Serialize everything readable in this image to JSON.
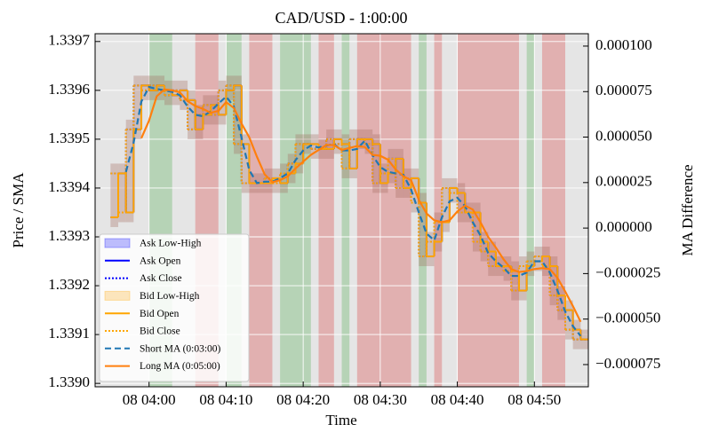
{
  "chart_data": {
    "type": "step",
    "title": "CAD/USD - 1:00:00",
    "x_label": "Time",
    "y_label": "Price / SMA",
    "y2_label": "MA Difference",
    "x": [
      "08 03:55",
      "08 03:56",
      "08 03:57",
      "08 03:58",
      "08 03:59",
      "08 04:00",
      "08 04:01",
      "08 04:02",
      "08 04:03",
      "08 04:04",
      "08 04:05",
      "08 04:06",
      "08 04:07",
      "08 04:08",
      "08 04:09",
      "08 04:10",
      "08 04:11",
      "08 04:12",
      "08 04:13",
      "08 04:14",
      "08 04:15",
      "08 04:16",
      "08 04:17",
      "08 04:18",
      "08 04:19",
      "08 04:20",
      "08 04:21",
      "08 04:22",
      "08 04:23",
      "08 04:24",
      "08 04:25",
      "08 04:26",
      "08 04:27",
      "08 04:28",
      "08 04:29",
      "08 04:30",
      "08 04:31",
      "08 04:32",
      "08 04:33",
      "08 04:34",
      "08 04:35",
      "08 04:36",
      "08 04:37",
      "08 04:38",
      "08 04:39",
      "08 04:40",
      "08 04:41",
      "08 04:42",
      "08 04:43",
      "08 04:44",
      "08 04:45",
      "08 04:46",
      "08 04:47",
      "08 04:48",
      "08 04:49",
      "08 04:50",
      "08 04:51",
      "08 04:52",
      "08 04:53",
      "08 04:54",
      "08 04:55",
      "08 04:56"
    ],
    "xlim": [
      "08 03:53",
      "08 04:57"
    ],
    "xticks": [
      "08 04:00",
      "08 04:10",
      "08 04:20",
      "08 04:30",
      "08 04:40",
      "08 04:50"
    ],
    "ylim": [
      1.338993,
      1.339716
    ],
    "yticks": [
      {
        "value": 1.339,
        "label": "1.3390"
      },
      1.3391,
      1.3392,
      1.3393,
      1.3394,
      1.3395,
      1.3396,
      1.3397
    ],
    "y2lim": [
      -8.72e-05,
      0.0001068
    ],
    "y2ticks": [
      {
        "value": -7.5e-05,
        "label": "−0.000075"
      },
      {
        "value": -5e-05,
        "label": "−0.000050"
      },
      {
        "value": -2.5e-05,
        "label": "−0.000025"
      },
      {
        "value": 0,
        "label": "0.000000"
      },
      {
        "value": 2.5e-05,
        "label": "0.000025"
      },
      {
        "value": 5e-05,
        "label": "0.000050"
      },
      {
        "value": 7.5e-05,
        "label": "0.000075"
      },
      {
        "value": 0.0001,
        "label": "0.000100"
      }
    ],
    "grid": true,
    "legend": "lower left",
    "regions": [
      {
        "start": "08 04:00",
        "end": "08 04:03",
        "color": "#2ca02c"
      },
      {
        "start": "08 04:06",
        "end": "08 04:09",
        "color": "#d62728"
      },
      {
        "start": "08 04:10",
        "end": "08 04:12",
        "color": "#2ca02c"
      },
      {
        "start": "08 04:13",
        "end": "08 04:16",
        "color": "#d62728"
      },
      {
        "start": "08 04:17",
        "end": "08 04:21",
        "color": "#2ca02c"
      },
      {
        "start": "08 04:22",
        "end": "08 04:24",
        "color": "#d62728"
      },
      {
        "start": "08 04:25",
        "end": "08 04:26",
        "color": "#2ca02c"
      },
      {
        "start": "08 04:27",
        "end": "08 04:34",
        "color": "#d62728"
      },
      {
        "start": "08 04:35",
        "end": "08 04:36",
        "color": "#2ca02c"
      },
      {
        "start": "08 04:37",
        "end": "08 04:38",
        "color": "#d62728"
      },
      {
        "start": "08 04:40",
        "end": "08 04:48",
        "color": "#d62728"
      },
      {
        "start": "08 04:49",
        "end": "08 04:50",
        "color": "#2ca02c"
      },
      {
        "start": "08 04:51",
        "end": "08 04:54",
        "color": "#d62728"
      }
    ],
    "series": [
      {
        "name": "Ask Low-High",
        "kind": "range",
        "color": "#0000ff",
        "low": [
          1.33932,
          1.33933,
          1.33933,
          1.3395,
          1.33958,
          1.33958,
          1.33958,
          1.33957,
          1.33957,
          1.33956,
          1.3395,
          1.3395,
          1.33953,
          1.33953,
          1.33953,
          1.33958,
          1.33947,
          1.33939,
          1.33939,
          1.33939,
          1.33939,
          1.33939,
          1.33939,
          1.33941,
          1.33943,
          1.33947,
          1.33946,
          1.33946,
          1.33946,
          1.33947,
          1.33942,
          1.33942,
          1.33948,
          1.33947,
          1.33939,
          1.33939,
          1.33941,
          1.33938,
          1.33938,
          1.33935,
          1.33924,
          1.33924,
          1.33927,
          1.33931,
          1.33937,
          1.33933,
          1.33933,
          1.33927,
          1.33925,
          1.33922,
          1.33922,
          1.33921,
          1.33917,
          1.33917,
          1.33922,
          1.33923,
          1.33922,
          1.33916,
          1.33913,
          1.33909,
          1.33907,
          1.33907
        ],
        "high": [
          1.33945,
          1.33945,
          1.33954,
          1.33963,
          1.33963,
          1.33963,
          1.33963,
          1.33962,
          1.33962,
          1.33962,
          1.3396,
          1.33957,
          1.33959,
          1.33959,
          1.33962,
          1.33963,
          1.33963,
          1.33951,
          1.33943,
          1.33943,
          1.33944,
          1.33944,
          1.33945,
          1.33947,
          1.33951,
          1.33951,
          1.33951,
          1.3395,
          1.33952,
          1.33952,
          1.33951,
          1.33952,
          1.33952,
          1.33952,
          1.33951,
          1.33945,
          1.33948,
          1.33948,
          1.33944,
          1.33944,
          1.33939,
          1.33931,
          1.33935,
          1.33942,
          1.33942,
          1.33941,
          1.33937,
          1.33937,
          1.33931,
          1.33929,
          1.33926,
          1.33926,
          1.33925,
          1.33926,
          1.33927,
          1.33928,
          1.33928,
          1.33926,
          1.3392,
          1.33917,
          1.33913,
          1.33911
        ]
      },
      {
        "name": "Ask Open",
        "kind": "step",
        "style": "solid",
        "color": "#0000ff",
        "values": [
          1.33934,
          1.33943,
          1.33935,
          1.33952,
          1.33961,
          1.3396,
          1.33961,
          1.3396,
          1.33959,
          1.3396,
          1.33958,
          1.33952,
          1.33955,
          1.33957,
          1.33955,
          1.3396,
          1.33961,
          1.33949,
          1.33941,
          1.33941,
          1.33941,
          1.33942,
          1.33941,
          1.33943,
          1.33945,
          1.33949,
          1.33949,
          1.33948,
          1.33948,
          1.3395,
          1.33949,
          1.33944,
          1.3395,
          1.3395,
          1.33949,
          1.33941,
          1.33943,
          1.33946,
          1.3394,
          1.33942,
          1.33937,
          1.33926,
          1.33929,
          1.33933,
          1.3394,
          1.33939,
          1.33935,
          1.33935,
          1.33929,
          1.33927,
          1.33924,
          1.33924,
          1.33923,
          1.33919,
          1.33924,
          1.33925,
          1.33926,
          1.33924,
          1.33918,
          1.33915,
          1.33911,
          1.33909
        ]
      },
      {
        "name": "Ask Close",
        "kind": "step",
        "style": "dotted",
        "color": "#0000ff",
        "values": [
          1.33943,
          1.33935,
          1.33952,
          1.33961,
          1.3396,
          1.33961,
          1.3396,
          1.33959,
          1.3396,
          1.33958,
          1.33952,
          1.33955,
          1.33957,
          1.33955,
          1.3396,
          1.33961,
          1.33949,
          1.33941,
          1.33941,
          1.33941,
          1.33942,
          1.33941,
          1.33943,
          1.33945,
          1.33949,
          1.33949,
          1.33948,
          1.33948,
          1.3395,
          1.33949,
          1.33944,
          1.3395,
          1.3395,
          1.33949,
          1.33941,
          1.33943,
          1.33946,
          1.3394,
          1.33942,
          1.33937,
          1.33926,
          1.33929,
          1.33933,
          1.3394,
          1.33939,
          1.33935,
          1.33935,
          1.33929,
          1.33927,
          1.33924,
          1.33924,
          1.33923,
          1.33919,
          1.33924,
          1.33925,
          1.33926,
          1.33924,
          1.33918,
          1.33915,
          1.33911,
          1.33909,
          1.33909
        ]
      },
      {
        "name": "Bid Low-High",
        "kind": "range",
        "color": "#ffa500",
        "low": [
          1.33932,
          1.33933,
          1.33933,
          1.3395,
          1.33958,
          1.33958,
          1.33958,
          1.33957,
          1.33957,
          1.33956,
          1.3395,
          1.3395,
          1.33953,
          1.33953,
          1.33953,
          1.33958,
          1.33947,
          1.33939,
          1.33939,
          1.33939,
          1.33939,
          1.33939,
          1.33939,
          1.33941,
          1.33943,
          1.33947,
          1.33946,
          1.33946,
          1.33946,
          1.33947,
          1.33942,
          1.33942,
          1.33948,
          1.33947,
          1.33939,
          1.33939,
          1.33941,
          1.33938,
          1.33938,
          1.33935,
          1.33924,
          1.33924,
          1.33927,
          1.33931,
          1.33937,
          1.33933,
          1.33933,
          1.33927,
          1.33925,
          1.33922,
          1.33922,
          1.33921,
          1.33917,
          1.33917,
          1.33922,
          1.33923,
          1.33922,
          1.33916,
          1.33913,
          1.33909,
          1.33907,
          1.33907
        ],
        "high": [
          1.33945,
          1.33945,
          1.33954,
          1.33963,
          1.33963,
          1.33963,
          1.33963,
          1.33962,
          1.33962,
          1.33962,
          1.3396,
          1.33957,
          1.33959,
          1.33959,
          1.33962,
          1.33963,
          1.33963,
          1.33951,
          1.33943,
          1.33943,
          1.33944,
          1.33944,
          1.33945,
          1.33947,
          1.33951,
          1.33951,
          1.33951,
          1.3395,
          1.33952,
          1.33952,
          1.33951,
          1.33952,
          1.33952,
          1.33952,
          1.33951,
          1.33945,
          1.33948,
          1.33948,
          1.33944,
          1.33944,
          1.33939,
          1.33931,
          1.33935,
          1.33942,
          1.33942,
          1.33941,
          1.33937,
          1.33937,
          1.33931,
          1.33929,
          1.33926,
          1.33926,
          1.33925,
          1.33926,
          1.33927,
          1.33928,
          1.33928,
          1.33926,
          1.3392,
          1.33917,
          1.33913,
          1.33911
        ]
      },
      {
        "name": "Bid Open",
        "kind": "step",
        "style": "solid",
        "color": "#ffa500",
        "values": [
          1.33934,
          1.33943,
          1.33935,
          1.33952,
          1.33961,
          1.3396,
          1.33961,
          1.3396,
          1.33959,
          1.3396,
          1.33958,
          1.33952,
          1.33955,
          1.33957,
          1.33955,
          1.3396,
          1.33961,
          1.33949,
          1.33941,
          1.33941,
          1.33941,
          1.33942,
          1.33941,
          1.33943,
          1.33945,
          1.33949,
          1.33949,
          1.33948,
          1.33948,
          1.3395,
          1.33949,
          1.33944,
          1.3395,
          1.3395,
          1.33949,
          1.33941,
          1.33943,
          1.33946,
          1.3394,
          1.33942,
          1.33937,
          1.33926,
          1.33929,
          1.33933,
          1.3394,
          1.33939,
          1.33935,
          1.33935,
          1.33929,
          1.33927,
          1.33924,
          1.33924,
          1.33923,
          1.33919,
          1.33924,
          1.33925,
          1.33926,
          1.33924,
          1.33918,
          1.33915,
          1.33911,
          1.33909
        ]
      },
      {
        "name": "Bid Close",
        "kind": "step",
        "style": "dotted",
        "color": "#ffa500",
        "values": [
          1.33943,
          1.33935,
          1.33952,
          1.33961,
          1.3396,
          1.33961,
          1.3396,
          1.33959,
          1.3396,
          1.33958,
          1.33952,
          1.33955,
          1.33957,
          1.33955,
          1.3396,
          1.33961,
          1.33949,
          1.33941,
          1.33941,
          1.33941,
          1.33942,
          1.33941,
          1.33943,
          1.33945,
          1.33949,
          1.33949,
          1.33948,
          1.33948,
          1.3395,
          1.33949,
          1.33944,
          1.3395,
          1.3395,
          1.33949,
          1.33941,
          1.33943,
          1.33946,
          1.3394,
          1.33942,
          1.33937,
          1.33926,
          1.33929,
          1.33933,
          1.3394,
          1.33939,
          1.33935,
          1.33935,
          1.33929,
          1.33927,
          1.33924,
          1.33924,
          1.33923,
          1.33919,
          1.33924,
          1.33925,
          1.33926,
          1.33924,
          1.33918,
          1.33915,
          1.33911,
          1.33909,
          1.33909
        ]
      },
      {
        "name": "Short MA (0:03:00)",
        "kind": "line",
        "style": "dashed",
        "color": "#1f77b4",
        "values": [
          null,
          null,
          1.339433,
          1.339493,
          1.339577,
          1.339607,
          1.339603,
          1.3396,
          1.339597,
          1.33959,
          1.339567,
          1.33955,
          1.339547,
          1.339557,
          1.339573,
          1.339587,
          1.339567,
          1.339503,
          1.339437,
          1.33941,
          1.339413,
          1.339413,
          1.33942,
          1.33943,
          1.339457,
          1.339477,
          1.339487,
          1.339483,
          1.339487,
          1.33949,
          1.339477,
          1.339477,
          1.33948,
          1.339497,
          1.339467,
          1.339443,
          1.339433,
          1.33943,
          1.339427,
          1.339397,
          1.33935,
          1.339307,
          1.339293,
          1.33934,
          1.339373,
          1.33938,
          1.339363,
          1.33933,
          1.339303,
          1.339267,
          1.33925,
          1.339237,
          1.33922,
          1.33922,
          1.339227,
          1.33925,
          1.33925,
          1.339227,
          1.33919,
          1.339147,
          1.339117,
          1.339097
        ]
      },
      {
        "name": "Long MA (0:05:00)",
        "kind": "line",
        "style": "solid",
        "color": "#ff7f0e",
        "values": [
          null,
          null,
          null,
          null,
          1.339502,
          1.339538,
          1.339588,
          1.339602,
          1.3396,
          1.339596,
          1.339578,
          1.339568,
          1.339562,
          1.339554,
          1.339558,
          1.339576,
          1.339564,
          1.339532,
          1.339504,
          1.339464,
          1.339428,
          1.339412,
          1.339416,
          1.339424,
          1.33944,
          1.339454,
          1.339468,
          1.339478,
          1.339488,
          1.339488,
          1.339478,
          1.339482,
          1.339486,
          1.339484,
          1.339468,
          1.339466,
          1.339458,
          1.339438,
          1.339424,
          1.339416,
          1.339376,
          1.339348,
          1.339334,
          1.33933,
          1.339334,
          1.339352,
          1.339364,
          1.339356,
          1.33933,
          1.3393,
          1.339278,
          1.339254,
          1.339234,
          1.339228,
          1.33923,
          1.339234,
          1.339236,
          1.339234,
          1.339216,
          1.339188,
          1.339158,
          1.339126
        ]
      }
    ]
  }
}
